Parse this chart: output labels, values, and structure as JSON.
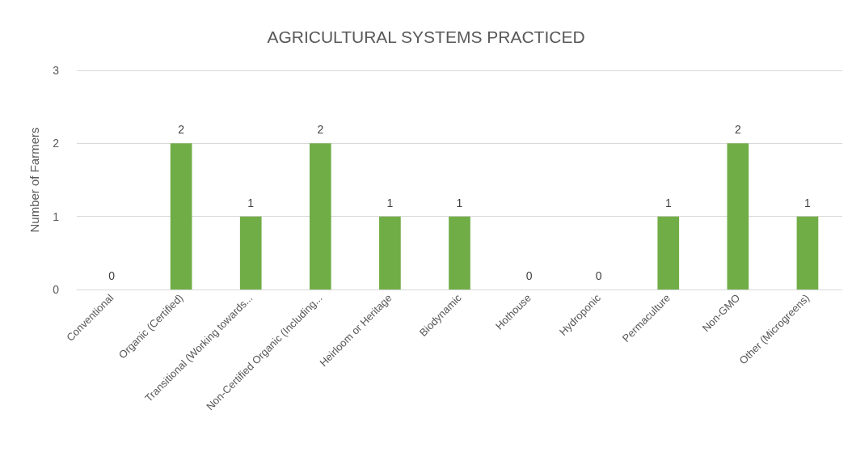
{
  "chart_data": {
    "type": "bar",
    "title": "AGRICULTURAL SYSTEMS PRACTICED",
    "ylabel": "Number of Farmers",
    "categories": [
      "Conventional",
      "Organic (Certified)",
      "Transitional (Working towards...",
      "Non-Certified Organic (Including...",
      "Heirloom or Heritage",
      "Biodynamic",
      "Hothouse",
      "Hydroponic",
      "Permaculture",
      "Non-GMO",
      "Other (Microgreens)"
    ],
    "values": [
      0,
      2,
      1,
      2,
      1,
      1,
      0,
      0,
      1,
      2,
      1
    ],
    "color": "#70ad47",
    "ylim": [
      0,
      3
    ],
    "yticks": [
      0,
      1,
      2,
      3
    ],
    "grid": "y",
    "data_labels": true
  }
}
